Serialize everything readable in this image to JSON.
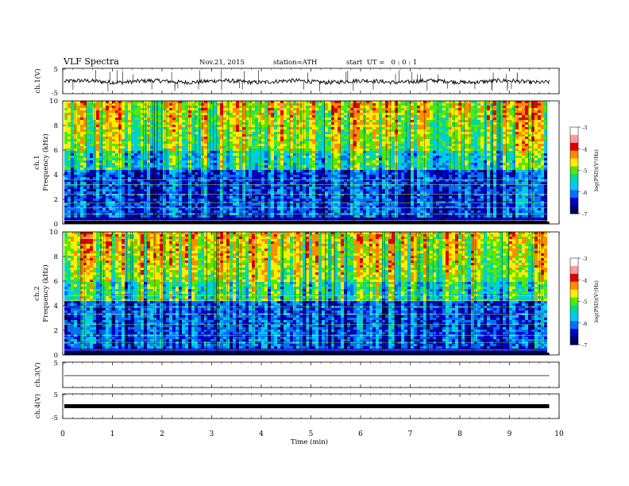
{
  "header": {
    "title": "VLF Spectra",
    "date": "Nov.21, 2015",
    "station": "station=ATH",
    "start": "start  UT =   0 : 0 : 1"
  },
  "colorbar": {
    "label": "log(PSD)(V²/Hz)",
    "ticks": [
      "-3",
      "-4",
      "-5",
      "-6",
      "-7"
    ],
    "colors": [
      "#ffffff",
      "#ff9a9a",
      "#e00000",
      "#ff8c00",
      "#ffee00",
      "#55e800",
      "#00d8a0",
      "#00c8ff",
      "#0070ff",
      "#0000c8",
      "#000060"
    ]
  },
  "chart_data": [
    {
      "type": "line",
      "panel": "ch1-waveform",
      "ylabel": "ch.1(V)",
      "ylim": [
        -5,
        5
      ],
      "yticks": [
        "5",
        "-5"
      ],
      "series": [
        {
          "name": "",
          "baseline": -0.2,
          "values": [
            -0.3,
            0.1,
            -0.5,
            0.2,
            -0.1,
            0.4,
            -0.2,
            0.0,
            -0.4,
            0.3,
            -0.1,
            0.2
          ]
        }
      ],
      "color": "#000000"
    },
    {
      "type": "heatmap",
      "panel": "ch1-spectrogram",
      "ylabel": "Frequency (kHz)",
      "ylabel2": "ch.1",
      "ylim": [
        0,
        10
      ],
      "yticks": [
        "0",
        "2",
        "4",
        "6",
        "8",
        "10"
      ],
      "value_range": [
        -7,
        -3
      ],
      "bands_khz": [
        0.3,
        0.8,
        1.3,
        1.7,
        2.4,
        3.2,
        3.6
      ]
    },
    {
      "type": "heatmap",
      "panel": "ch2-spectrogram",
      "ylabel": "Frequency (kHz)",
      "ylabel2": "ch.2",
      "ylim": [
        0,
        10
      ],
      "yticks": [
        "0",
        "2",
        "4",
        "6",
        "8",
        "10"
      ],
      "value_range": [
        -7,
        -3
      ],
      "bands_khz": [
        0.4,
        1.0,
        1.6,
        2.5,
        3.3,
        3.9,
        4.4,
        4.8
      ]
    },
    {
      "type": "line",
      "panel": "ch3-waveform",
      "ylabel": "ch.3(V)",
      "ylim": [
        -5,
        5
      ],
      "yticks": [
        "5",
        ""
      ],
      "series": [
        {
          "name": "",
          "baseline": 0.0,
          "values": [
            0.0,
            0.0,
            0.0,
            0.0
          ]
        }
      ],
      "color": "#000000"
    },
    {
      "type": "line",
      "panel": "ch4-waveform",
      "ylabel": "ch.4(V)",
      "ylim": [
        -5,
        5
      ],
      "yticks": [
        "5",
        "-5"
      ],
      "series": [
        {
          "name": "",
          "baseline": 0.0,
          "values": [
            0.0,
            0.0,
            0.0,
            0.0
          ]
        }
      ],
      "color": "#000000"
    }
  ],
  "xaxis": {
    "label": "Time  (min)",
    "xlim": [
      0,
      10
    ],
    "ticks": [
      "0",
      "1",
      "2",
      "3",
      "4",
      "5",
      "6",
      "7",
      "8",
      "9",
      "10"
    ],
    "data_end": 9.8
  }
}
